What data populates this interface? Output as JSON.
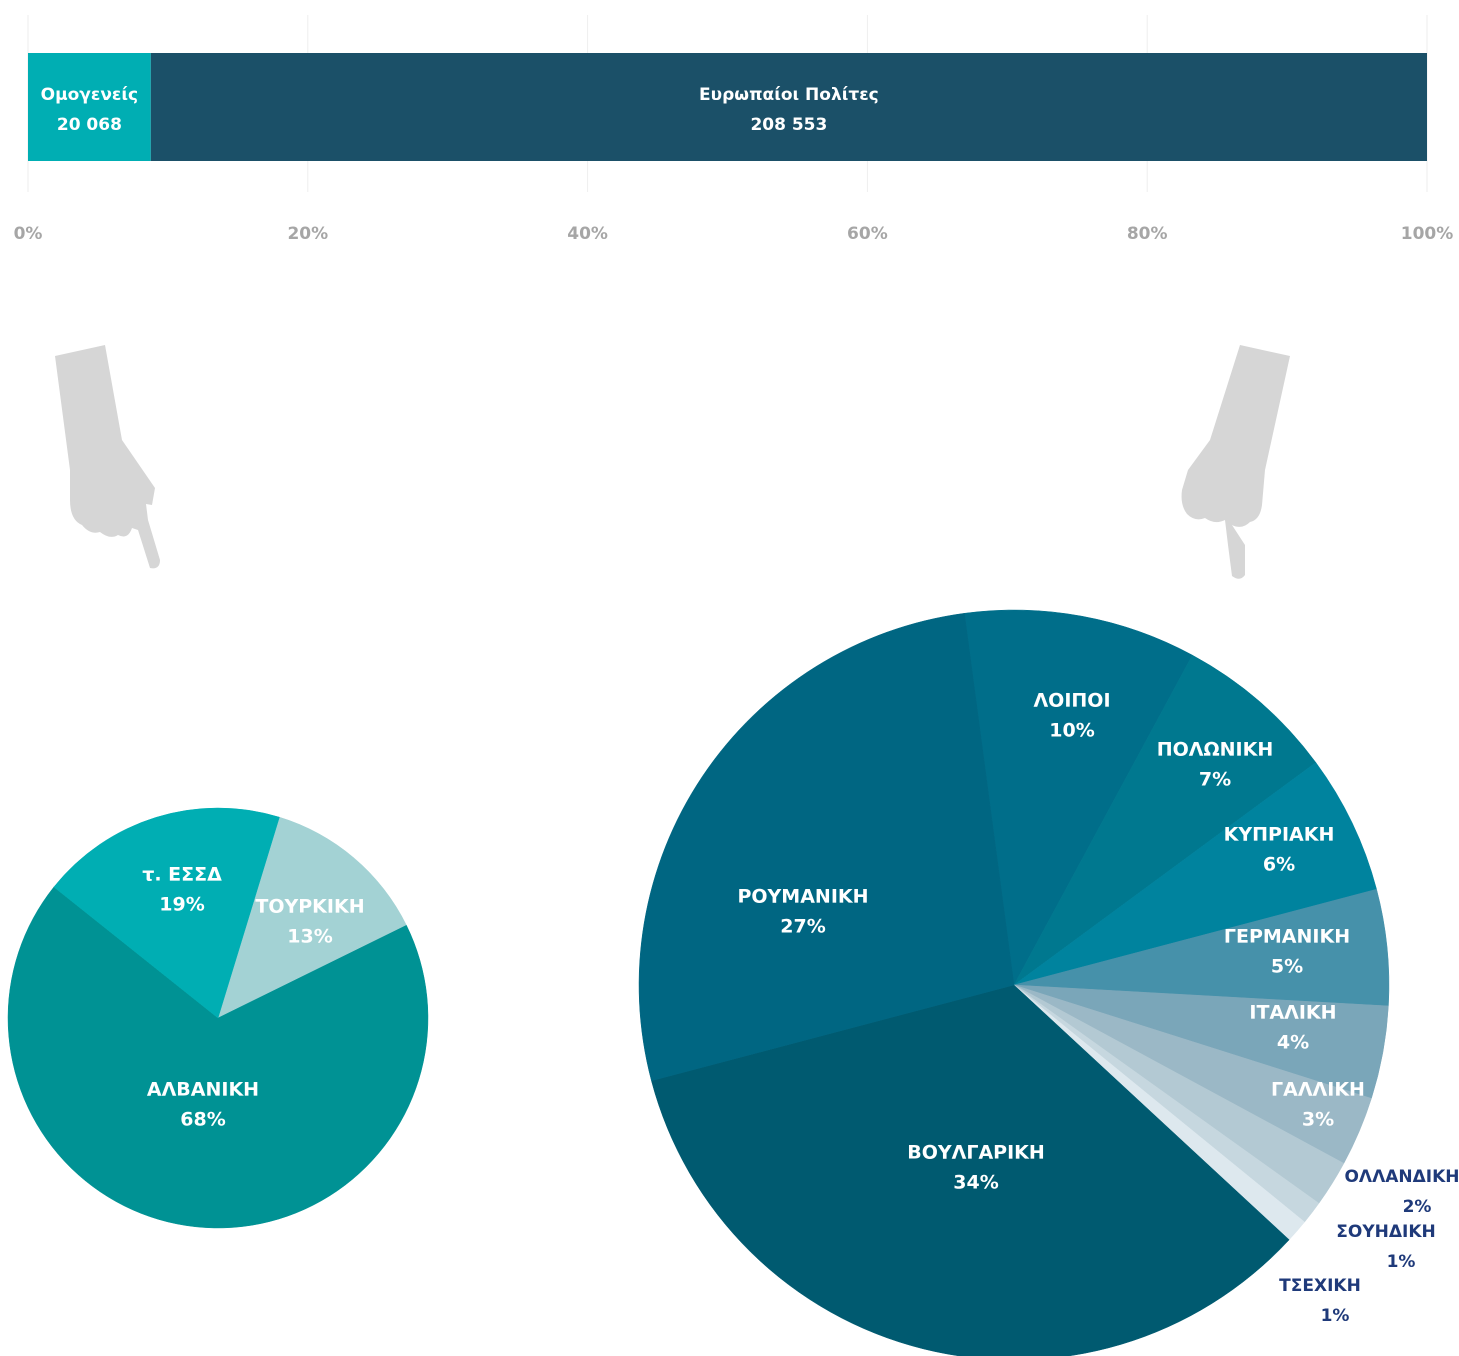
{
  "chart_data": [
    {
      "type": "bar",
      "orientation": "horizontal",
      "stacked": "percent",
      "series": [
        {
          "name": "Ομογενείς",
          "color": "#00aeb3",
          "values": [
            20068
          ],
          "value_labels": [
            "20 068"
          ]
        },
        {
          "name": "Ευρωπαίοι Πολίτες",
          "color": "#1b5068",
          "values": [
            208553
          ],
          "value_labels": [
            "208 553"
          ]
        }
      ],
      "xlim": [
        0,
        100
      ],
      "xticks": [
        {
          "value": 0,
          "label": "0%"
        },
        {
          "value": 20,
          "label": "20%"
        },
        {
          "value": 40,
          "label": "40%"
        },
        {
          "value": 60,
          "label": "60%"
        },
        {
          "value": 80,
          "label": "80%"
        },
        {
          "value": 100,
          "label": "100%"
        }
      ],
      "grid": true
    },
    {
      "type": "pie",
      "categories": [
        "ΤΟΥΡΚΙΚΗ",
        "ΑΛΒΑΝΙΚΗ",
        "τ. ΕΣΣΔ"
      ],
      "values": [
        13,
        68,
        19
      ],
      "value_labels": [
        "13%",
        "68%",
        "19%"
      ],
      "colors": [
        "#a3d2d4",
        "#009294",
        "#00aeb3"
      ]
    },
    {
      "type": "pie",
      "categories": [
        "ΛΟΙΠΟΙ",
        "ΠΟΛΩΝΙΚΗ",
        "ΚΥΠΡΙΑΚΗ",
        "ΓΕΡΜΑΝΙΚΗ",
        "ΙΤΑΛΙΚΗ",
        "ΓΑΛΛΙΚΗ",
        "ΟΛΛΑΝΔΙΚΗ",
        "ΣΟΥΗΔΙΚΗ",
        "ΤΣΕΧΙΚΗ",
        "ΒΟΥΛΓΑΡΙΚΗ",
        "ΡΟΥΜΑΝΙΚΗ"
      ],
      "values": [
        10,
        7,
        6,
        5,
        4,
        3,
        2,
        1,
        1,
        34,
        27
      ],
      "value_labels": [
        "10%",
        "7%",
        "6%",
        "5%",
        "4%",
        "3%",
        "2%",
        "1%",
        "1%",
        "34%",
        "27%"
      ],
      "colors": [
        "#006e8a",
        "#00788f",
        "#00839e",
        "#4691aa",
        "#7aa6b9",
        "#9bb8c6",
        "#b3c9d3",
        "#c6d7df",
        "#dde8ee",
        "#005a70",
        "#006682"
      ]
    }
  ]
}
